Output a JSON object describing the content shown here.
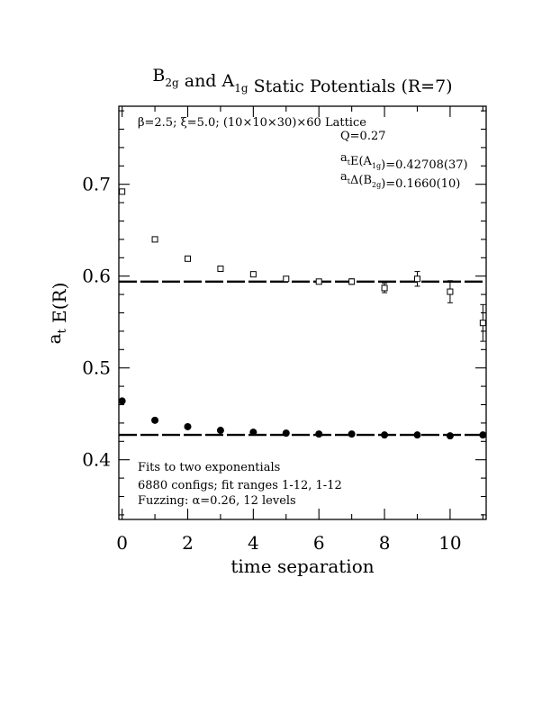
{
  "chart_data": {
    "type": "scatter",
    "title": {
      "parts": [
        {
          "t": "B"
        },
        {
          "t": "2g",
          "sub": true
        },
        {
          "t": " and A"
        },
        {
          "t": "1g",
          "sub": true
        },
        {
          "t": " Static Potentials (R=7)"
        }
      ]
    },
    "xlabel": "time separation",
    "ylabel": {
      "parts": [
        {
          "t": "a"
        },
        {
          "t": "t",
          "sub": true
        },
        {
          "t": " E(R)"
        }
      ]
    },
    "xlim": [
      -0.1,
      11.1
    ],
    "ylim": [
      0.335,
      0.785
    ],
    "x_ticks": [
      0,
      2,
      4,
      6,
      8,
      10
    ],
    "x_tick_labels": [
      "0",
      "2",
      "4",
      "6",
      "8",
      "10"
    ],
    "y_ticks": [
      0.4,
      0.5,
      0.6,
      0.7
    ],
    "y_tick_labels": [
      "0.4",
      "0.5",
      "0.6",
      "0.7"
    ],
    "grid": false,
    "series": [
      {
        "marker": "open-square",
        "x": [
          0,
          1,
          2,
          3,
          4,
          5,
          6,
          7,
          8,
          9,
          10,
          11
        ],
        "y": [
          0.692,
          0.64,
          0.619,
          0.608,
          0.602,
          0.597,
          0.594,
          0.594,
          0.587,
          0.597,
          0.583,
          0.549
        ],
        "err": [
          0.001,
          0.001,
          0.001,
          0.001,
          0.001,
          0.002,
          0.002,
          0.003,
          0.005,
          0.008,
          0.012,
          0.02
        ]
      },
      {
        "marker": "filled-circle",
        "x": [
          0,
          1,
          2,
          3,
          4,
          5,
          6,
          7,
          8,
          9,
          10,
          11
        ],
        "y": [
          0.464,
          0.443,
          0.436,
          0.432,
          0.43,
          0.429,
          0.428,
          0.428,
          0.427,
          0.427,
          0.426,
          0.427
        ],
        "err": [
          0,
          0,
          0,
          0,
          0,
          0,
          0,
          0,
          0,
          0,
          0,
          0
        ]
      }
    ],
    "fit_lines": [
      {
        "y": 0.594,
        "x_start": -0.1,
        "x_end": 11.1,
        "style": "dashed"
      },
      {
        "y": 0.4271,
        "x_start": -0.1,
        "x_end": 11.1,
        "style": "dashed"
      }
    ],
    "annotations": {
      "lattice": "β=2.5; ξ=5.0; (10×10×30)×60 Lattice",
      "q_value": "Q=0.27",
      "energy": {
        "parts": [
          {
            "t": "a"
          },
          {
            "t": "t",
            "sub": true
          },
          {
            "t": "E(A"
          },
          {
            "t": "1g",
            "sub": true
          },
          {
            "t": ")=0.42708(37)"
          }
        ]
      },
      "gap": {
        "parts": [
          {
            "t": "a"
          },
          {
            "t": "t",
            "sub": true
          },
          {
            "t": "Δ(B"
          },
          {
            "t": "2g",
            "sub": true
          },
          {
            "t": ")=0.1660(10)"
          }
        ]
      },
      "fit_note_1": "Fits to two exponentials",
      "fit_note_2": "6880 configs; fit ranges 1-12, 1-12",
      "fit_note_3": "Fuzzing: α=0.26, 12 levels"
    }
  }
}
